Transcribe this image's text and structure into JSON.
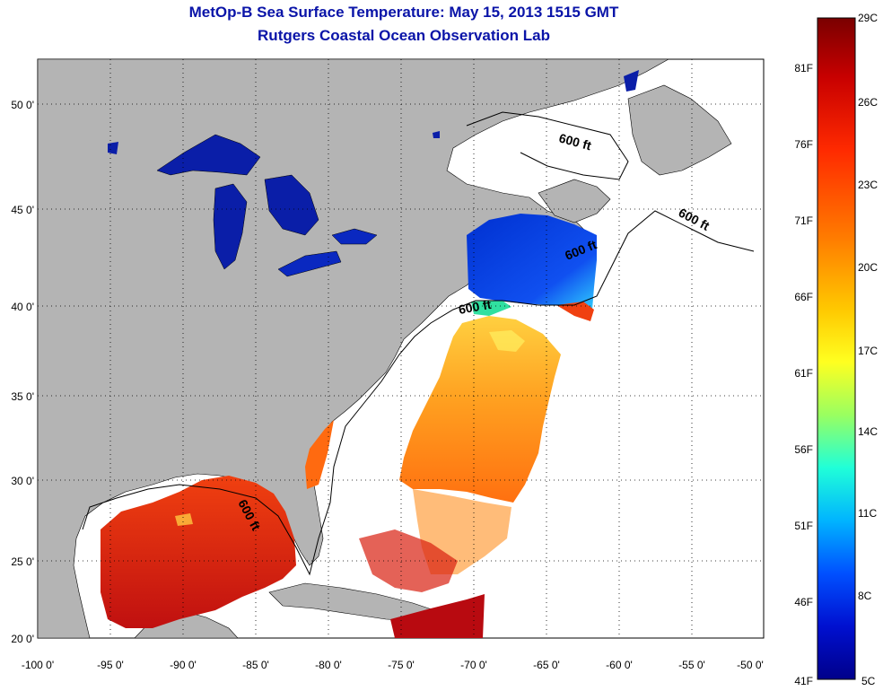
{
  "header": {
    "title": "MetOp-B Sea Surface Temperature:  May 15, 2013 1515 GMT",
    "subtitle": "Rutgers Coastal Ocean Observation Lab"
  },
  "map": {
    "lon_range": [
      -100,
      -50
    ],
    "lat_range": [
      20,
      52
    ],
    "x_ticks": [
      "-100 0'",
      "-95 0'",
      "-90 0'",
      "-85 0'",
      "-80 0'",
      "-75 0'",
      "-70 0'",
      "-65 0'",
      "-60 0'",
      "-55 0'",
      "-50 0'"
    ],
    "y_ticks": [
      "20 0'",
      "25 0'",
      "30 0'",
      "35 0'",
      "40 0'",
      "45 0'",
      "50 0'"
    ],
    "y_tick_values": [
      20,
      25,
      30,
      35,
      40,
      45,
      50
    ],
    "x_tick_values": [
      -100,
      -95,
      -90,
      -85,
      -80,
      -75,
      -70,
      -65,
      -60,
      -55,
      -50
    ],
    "land_color": "#b4b4b4",
    "ocean_color": "#ffffff",
    "grid": "dotted",
    "contour_labels": [
      "600 ft",
      "600 ft",
      "600 ft",
      "600 ft",
      "600 ft"
    ]
  },
  "colorbar": {
    "celsius_labels": [
      "29C",
      "26C",
      "23C",
      "20C",
      "17C",
      "14C",
      "11C",
      "8C",
      "5C"
    ],
    "fahrenheit_labels": [
      "81F",
      "76F",
      "71F",
      "66F",
      "61F",
      "56F",
      "51F",
      "46F",
      "41F"
    ],
    "colors": [
      "#7a0000",
      "#c80000",
      "#ff2a00",
      "#ff7a00",
      "#ffc800",
      "#ffff20",
      "#9aff60",
      "#20ffd8",
      "#00b4ff",
      "#0050ff",
      "#0010d0",
      "#00008a"
    ]
  }
}
